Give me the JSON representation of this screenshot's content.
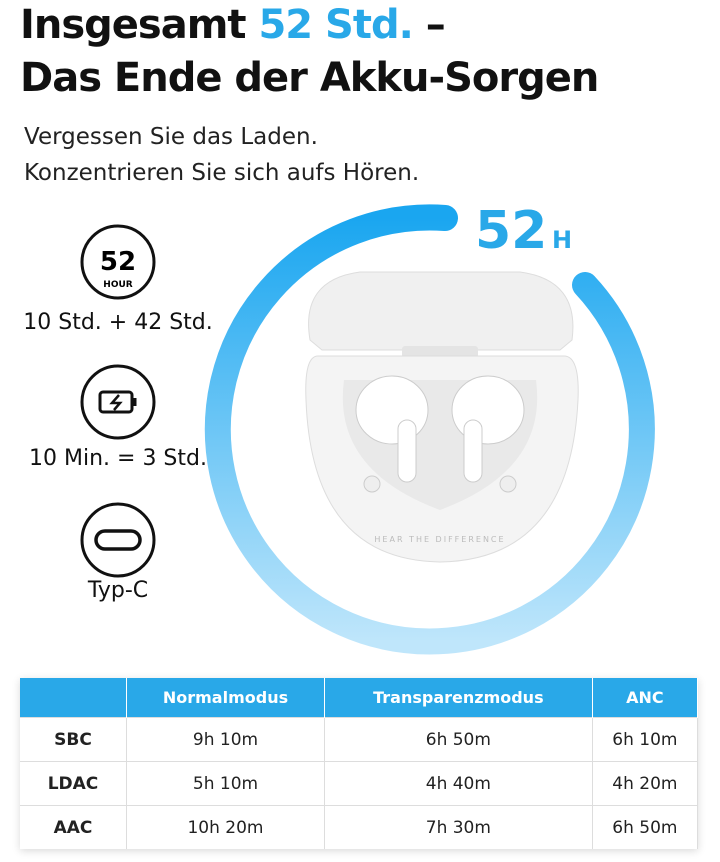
{
  "headline": {
    "line1_start": "Insgesamt",
    "highlight": "52 Std.",
    "line1_end": "–",
    "line2": "Das Ende der Akku-Sorgen"
  },
  "subtitle": [
    "Vergessen Sie das Laden.",
    "Konzentrieren Sie sich aufs Hören."
  ],
  "ring_label": {
    "number": "52",
    "unit": "H"
  },
  "features": [
    {
      "icon_number": "52",
      "icon_unit": "HOUR",
      "caption": "10 Std. + 42 Std."
    },
    {
      "caption": "10 Min. = 3 Std."
    },
    {
      "caption": "Typ-C"
    }
  ],
  "product_text": "HEAR THE DIFFERENCE",
  "table": {
    "columns": [
      "Normalmodus",
      "Transparenzmodus",
      "ANC"
    ],
    "rows": [
      [
        "SBC",
        "9h 10m",
        "6h 50m",
        "6h 10m"
      ],
      [
        "LDAC",
        "5h 10m",
        "4h 40m",
        "4h 20m"
      ],
      [
        "AAC",
        "10h 20m",
        "7h 30m",
        "6h 50m"
      ]
    ]
  }
}
